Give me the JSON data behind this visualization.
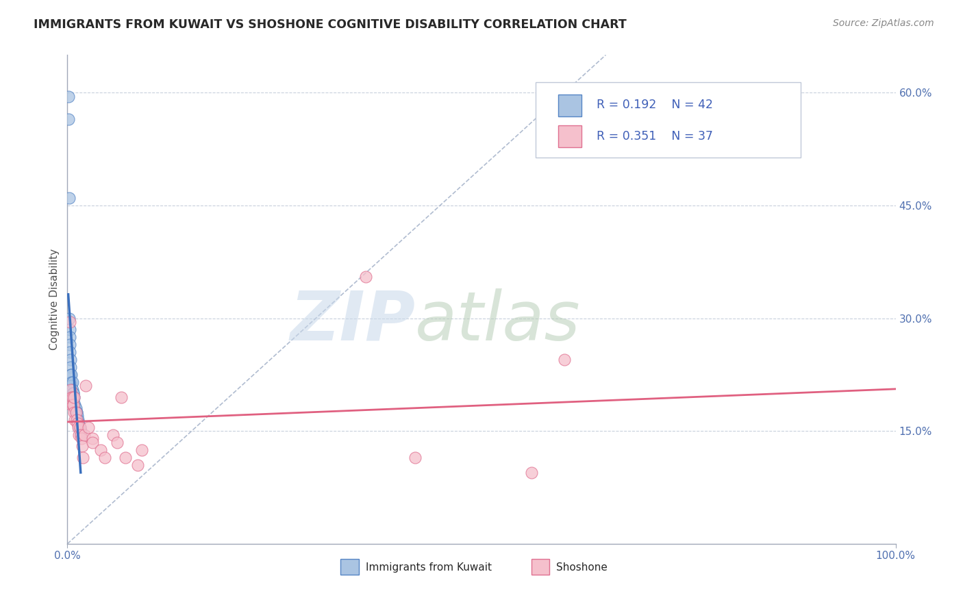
{
  "title": "IMMIGRANTS FROM KUWAIT VS SHOSHONE COGNITIVE DISABILITY CORRELATION CHART",
  "source": "Source: ZipAtlas.com",
  "ylabel": "Cognitive Disability",
  "xlim": [
    0,
    1.0
  ],
  "ylim": [
    0,
    0.65
  ],
  "y_tick_labels_right": [
    "60.0%",
    "45.0%",
    "30.0%",
    "15.0%"
  ],
  "y_tick_vals_right": [
    0.6,
    0.45,
    0.3,
    0.15
  ],
  "kuwait_R": 0.192,
  "kuwait_N": 42,
  "shoshone_R": 0.351,
  "shoshone_N": 37,
  "kuwait_color": "#aac4e2",
  "kuwait_edge_color": "#5585c5",
  "kuwait_line_color": "#3a6fbd",
  "shoshone_color": "#f5c0cc",
  "shoshone_edge_color": "#e07090",
  "shoshone_line_color": "#e06080",
  "diagonal_color": "#b0bcd0",
  "kuwait_x": [
    0.001,
    0.001,
    0.002,
    0.002,
    0.003,
    0.003,
    0.003,
    0.003,
    0.004,
    0.004,
    0.004,
    0.005,
    0.005,
    0.005,
    0.005,
    0.006,
    0.006,
    0.006,
    0.007,
    0.007,
    0.007,
    0.007,
    0.008,
    0.008,
    0.009,
    0.009,
    0.01,
    0.01,
    0.01,
    0.011,
    0.011,
    0.011,
    0.012,
    0.012,
    0.013,
    0.013,
    0.014,
    0.014,
    0.015,
    0.015,
    0.016,
    0.016
  ],
  "kuwait_y": [
    0.595,
    0.565,
    0.46,
    0.3,
    0.285,
    0.275,
    0.265,
    0.255,
    0.245,
    0.235,
    0.225,
    0.225,
    0.215,
    0.21,
    0.205,
    0.215,
    0.205,
    0.2,
    0.2,
    0.2,
    0.195,
    0.19,
    0.195,
    0.185,
    0.185,
    0.18,
    0.18,
    0.175,
    0.175,
    0.175,
    0.175,
    0.17,
    0.17,
    0.165,
    0.165,
    0.16,
    0.16,
    0.155,
    0.155,
    0.15,
    0.15,
    0.145
  ],
  "shoshone_x": [
    0.003,
    0.004,
    0.005,
    0.005,
    0.006,
    0.006,
    0.007,
    0.008,
    0.008,
    0.009,
    0.01,
    0.011,
    0.012,
    0.013,
    0.014,
    0.015,
    0.016,
    0.017,
    0.018,
    0.019,
    0.02,
    0.022,
    0.025,
    0.03,
    0.03,
    0.04,
    0.045,
    0.055,
    0.06,
    0.065,
    0.07,
    0.085,
    0.09,
    0.36,
    0.42,
    0.56,
    0.6
  ],
  "shoshone_y": [
    0.295,
    0.205,
    0.195,
    0.185,
    0.195,
    0.185,
    0.185,
    0.195,
    0.175,
    0.165,
    0.175,
    0.165,
    0.16,
    0.155,
    0.145,
    0.155,
    0.145,
    0.14,
    0.13,
    0.115,
    0.145,
    0.21,
    0.155,
    0.14,
    0.135,
    0.125,
    0.115,
    0.145,
    0.135,
    0.195,
    0.115,
    0.105,
    0.125,
    0.355,
    0.115,
    0.095,
    0.245
  ]
}
